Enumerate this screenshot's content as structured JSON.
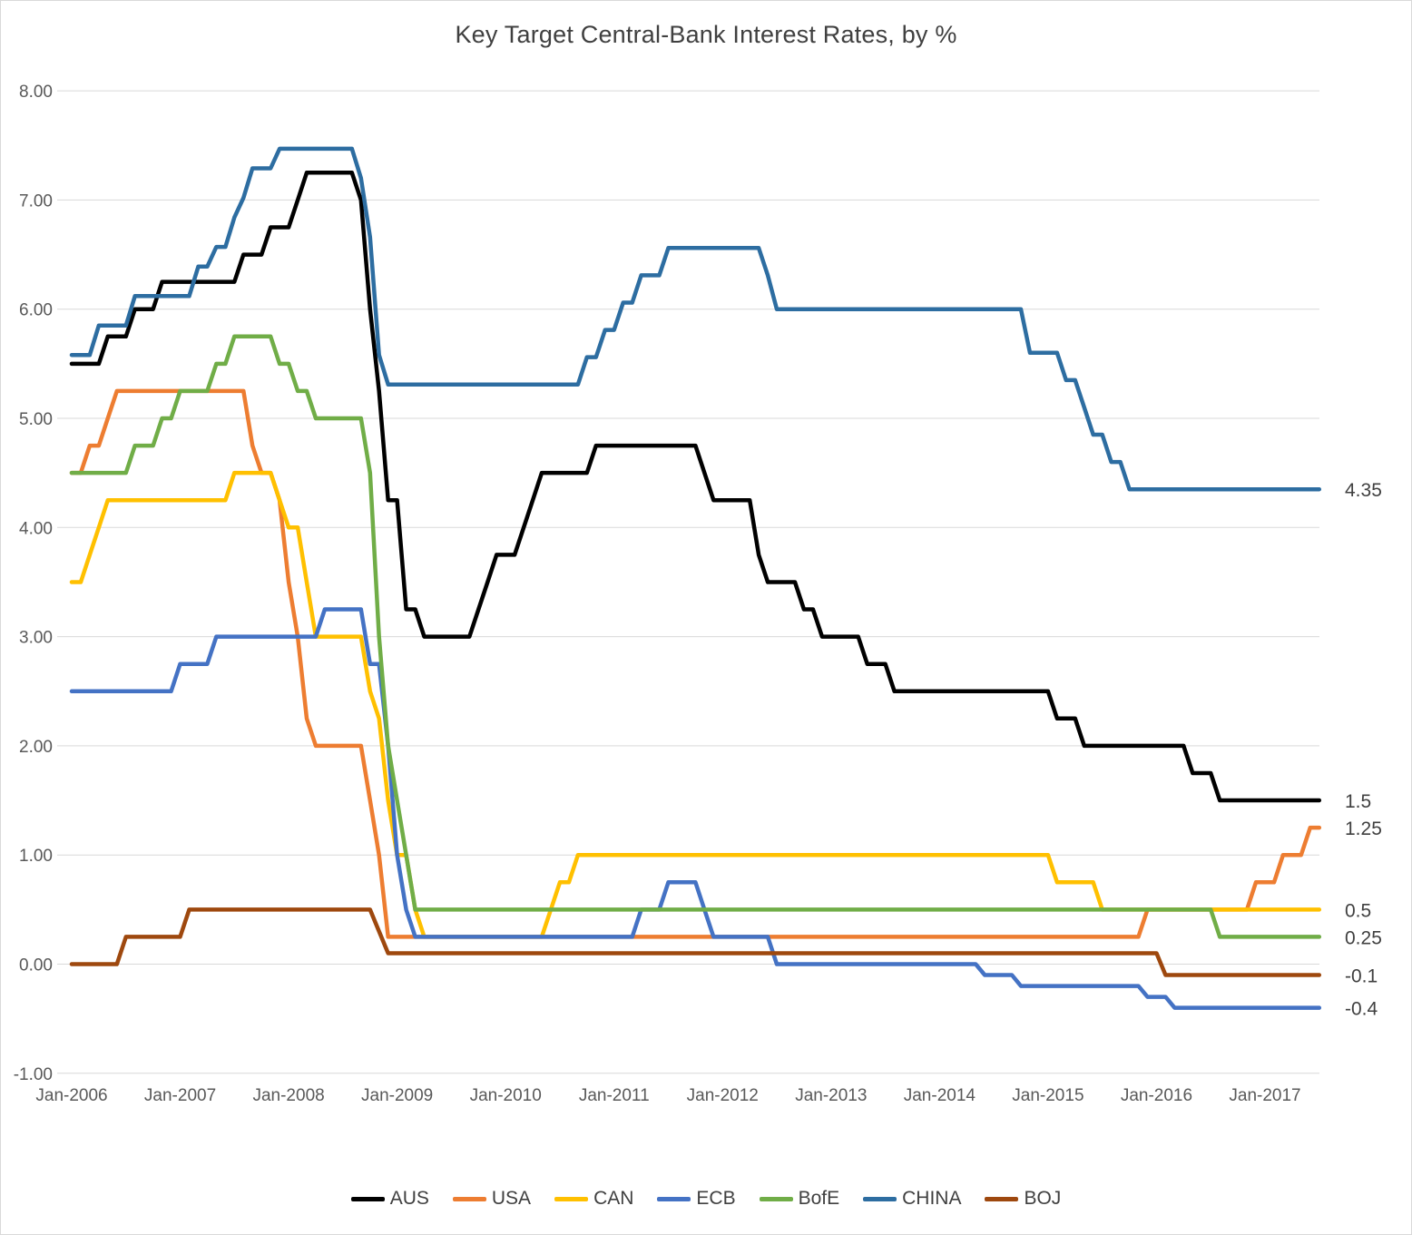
{
  "title": "Key Target Central-Bank Interest Rates, by %",
  "colors": {
    "background": "#FFFFFF",
    "grid": "#D9D9D9",
    "axis_text": "#595959",
    "title_text": "#404040",
    "end_label_text": "#404040",
    "border": "#D9D9D9"
  },
  "chart_data": {
    "type": "line",
    "title": "Key Target Central-Bank Interest Rates, by %",
    "xlabel": "",
    "ylabel": "",
    "grid": true,
    "legend_position": "bottom",
    "ylim": [
      -1,
      8
    ],
    "y_ticks": [
      8,
      7,
      6,
      5,
      4,
      3,
      2,
      1,
      0,
      -1
    ],
    "y_tick_labels": [
      "8.00",
      "7.00",
      "6.00",
      "5.00",
      "4.00",
      "3.00",
      "2.00",
      "1.00",
      "0.00",
      "-1.00"
    ],
    "x_tick_labels": [
      "Jan-2006",
      "Jan-2007",
      "Jan-2008",
      "Jan-2009",
      "Jan-2010",
      "Jan-2011",
      "Jan-2012",
      "Jan-2013",
      "Jan-2014",
      "Jan-2015",
      "Jan-2016",
      "Jan-2017"
    ],
    "x_start_month": "Jan-2006",
    "x_end_month": "Jul-2017",
    "months_total": 139,
    "note": "series segments are runs of [rate_percent, start_month_index, end_month_index], month index 0 = Jan-2006, each year = 12 months, 138 = Jul-2017",
    "series": [
      {
        "name": "AUS",
        "color": "#000000",
        "end_label": "1.5",
        "segments": [
          [
            5.5,
            0,
            3
          ],
          [
            5.75,
            4,
            6
          ],
          [
            6.0,
            7,
            9
          ],
          [
            6.25,
            10,
            18
          ],
          [
            6.5,
            19,
            21
          ],
          [
            6.75,
            22,
            24
          ],
          [
            7.0,
            25,
            25
          ],
          [
            7.25,
            26,
            31
          ],
          [
            7.0,
            32,
            32
          ],
          [
            6.0,
            33,
            33
          ],
          [
            5.25,
            34,
            34
          ],
          [
            4.25,
            35,
            36
          ],
          [
            3.25,
            37,
            38
          ],
          [
            3.0,
            39,
            44
          ],
          [
            3.25,
            45,
            45
          ],
          [
            3.5,
            46,
            46
          ],
          [
            3.75,
            47,
            49
          ],
          [
            4.0,
            50,
            50
          ],
          [
            4.25,
            51,
            51
          ],
          [
            4.5,
            52,
            57
          ],
          [
            4.75,
            58,
            69
          ],
          [
            4.5,
            70,
            70
          ],
          [
            4.25,
            71,
            75
          ],
          [
            3.75,
            76,
            76
          ],
          [
            3.5,
            77,
            80
          ],
          [
            3.25,
            81,
            82
          ],
          [
            3.0,
            83,
            87
          ],
          [
            2.75,
            88,
            90
          ],
          [
            2.5,
            91,
            108
          ],
          [
            2.25,
            109,
            111
          ],
          [
            2.0,
            112,
            123
          ],
          [
            1.75,
            124,
            126
          ],
          [
            1.5,
            127,
            138
          ]
        ]
      },
      {
        "name": "USA",
        "color": "#ED7D31",
        "end_label": "1.25",
        "segments": [
          [
            4.5,
            0,
            1
          ],
          [
            4.75,
            2,
            3
          ],
          [
            5.0,
            4,
            4
          ],
          [
            5.25,
            5,
            19
          ],
          [
            4.75,
            20,
            20
          ],
          [
            4.5,
            21,
            22
          ],
          [
            4.25,
            23,
            23
          ],
          [
            3.5,
            24,
            24
          ],
          [
            3.0,
            25,
            25
          ],
          [
            2.25,
            26,
            26
          ],
          [
            2.0,
            27,
            32
          ],
          [
            1.5,
            33,
            33
          ],
          [
            1.0,
            34,
            34
          ],
          [
            0.25,
            35,
            118
          ],
          [
            0.5,
            119,
            130
          ],
          [
            0.75,
            131,
            133
          ],
          [
            1.0,
            134,
            136
          ],
          [
            1.25,
            137,
            138
          ]
        ]
      },
      {
        "name": "CAN",
        "color": "#FFC000",
        "end_label": "0.5",
        "segments": [
          [
            3.5,
            0,
            1
          ],
          [
            3.75,
            2,
            2
          ],
          [
            4.0,
            3,
            3
          ],
          [
            4.25,
            4,
            17
          ],
          [
            4.5,
            18,
            22
          ],
          [
            4.25,
            23,
            23
          ],
          [
            4.0,
            24,
            25
          ],
          [
            3.5,
            26,
            26
          ],
          [
            3.0,
            27,
            32
          ],
          [
            2.5,
            33,
            33
          ],
          [
            2.25,
            34,
            34
          ],
          [
            1.5,
            35,
            35
          ],
          [
            1.0,
            36,
            37
          ],
          [
            0.5,
            38,
            38
          ],
          [
            0.25,
            39,
            52
          ],
          [
            0.5,
            53,
            53
          ],
          [
            0.75,
            54,
            55
          ],
          [
            1.0,
            56,
            108
          ],
          [
            0.75,
            109,
            113
          ],
          [
            0.5,
            114,
            138
          ]
        ]
      },
      {
        "name": "ECB",
        "color": "#4472C4",
        "end_label": "-0.4",
        "segments": [
          [
            2.5,
            0,
            11
          ],
          [
            2.75,
            12,
            15
          ],
          [
            3.0,
            16,
            27
          ],
          [
            3.25,
            28,
            32
          ],
          [
            2.75,
            33,
            34
          ],
          [
            2.0,
            35,
            35
          ],
          [
            1.0,
            36,
            36
          ],
          [
            0.5,
            37,
            37
          ],
          [
            0.25,
            38,
            62
          ],
          [
            0.5,
            63,
            65
          ],
          [
            0.75,
            66,
            69
          ],
          [
            0.5,
            70,
            70
          ],
          [
            0.25,
            71,
            77
          ],
          [
            0.0,
            78,
            100
          ],
          [
            -0.1,
            101,
            104
          ],
          [
            -0.2,
            105,
            118
          ],
          [
            -0.3,
            119,
            121
          ],
          [
            -0.4,
            122,
            138
          ]
        ]
      },
      {
        "name": "BofE",
        "color": "#70AD47",
        "end_label": "0.25",
        "segments": [
          [
            4.5,
            0,
            6
          ],
          [
            4.75,
            7,
            9
          ],
          [
            5.0,
            10,
            11
          ],
          [
            5.25,
            12,
            15
          ],
          [
            5.5,
            16,
            17
          ],
          [
            5.75,
            18,
            22
          ],
          [
            5.5,
            23,
            24
          ],
          [
            5.25,
            25,
            26
          ],
          [
            5.0,
            27,
            32
          ],
          [
            4.5,
            33,
            33
          ],
          [
            3.0,
            34,
            34
          ],
          [
            2.0,
            35,
            35
          ],
          [
            1.5,
            36,
            36
          ],
          [
            1.0,
            37,
            37
          ],
          [
            0.5,
            38,
            126
          ],
          [
            0.25,
            127,
            138
          ]
        ]
      },
      {
        "name": "CHINA",
        "color": "#2D6DA1",
        "end_label": "4.35",
        "segments": [
          [
            5.58,
            0,
            2
          ],
          [
            5.85,
            3,
            6
          ],
          [
            6.12,
            7,
            13
          ],
          [
            6.39,
            14,
            15
          ],
          [
            6.57,
            16,
            17
          ],
          [
            6.84,
            18,
            18
          ],
          [
            7.02,
            19,
            19
          ],
          [
            7.29,
            20,
            22
          ],
          [
            7.47,
            23,
            31
          ],
          [
            7.2,
            32,
            32
          ],
          [
            6.66,
            33,
            33
          ],
          [
            5.58,
            34,
            34
          ],
          [
            5.31,
            35,
            56
          ],
          [
            5.56,
            57,
            58
          ],
          [
            5.81,
            59,
            60
          ],
          [
            6.06,
            61,
            62
          ],
          [
            6.31,
            63,
            65
          ],
          [
            6.56,
            66,
            76
          ],
          [
            6.31,
            77,
            77
          ],
          [
            6.0,
            78,
            105
          ],
          [
            5.6,
            106,
            109
          ],
          [
            5.35,
            110,
            111
          ],
          [
            5.1,
            112,
            112
          ],
          [
            4.85,
            113,
            114
          ],
          [
            4.6,
            115,
            116
          ],
          [
            4.35,
            117,
            138
          ]
        ]
      },
      {
        "name": "BOJ",
        "color": "#9E480E",
        "end_label": "-0.1",
        "segments": [
          [
            0.0,
            0,
            5
          ],
          [
            0.25,
            6,
            12
          ],
          [
            0.5,
            13,
            33
          ],
          [
            0.3,
            34,
            34
          ],
          [
            0.1,
            35,
            120
          ],
          [
            -0.1,
            121,
            138
          ]
        ]
      }
    ]
  }
}
